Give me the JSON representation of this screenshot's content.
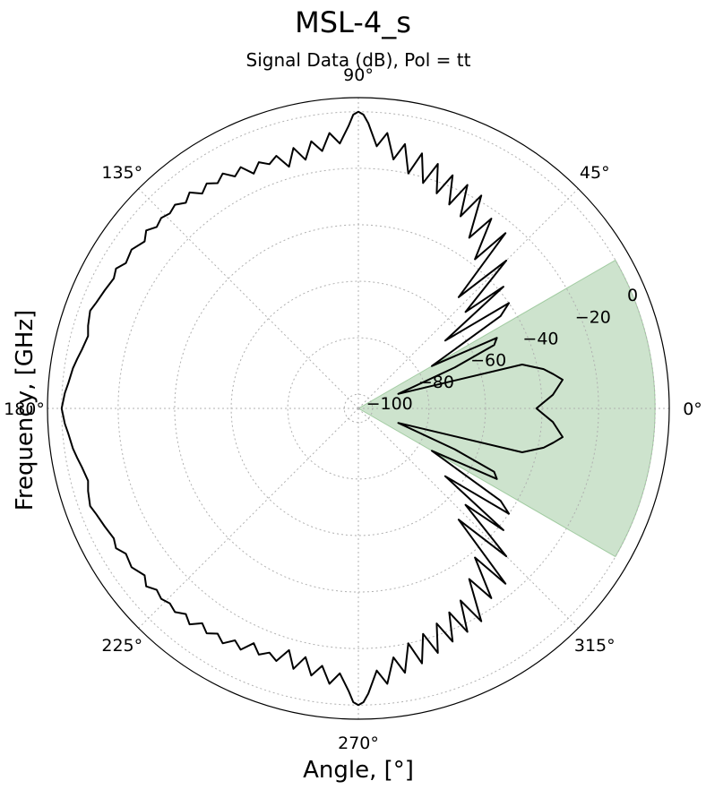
{
  "chart_data": {
    "type": "polar-line",
    "title": "MSL-4_s",
    "subtitle": "Signal Data (dB), Pol = tt",
    "xlabel": "Angle, [$^{\\circ}$]",
    "xlabel_display": "Angle, [°]",
    "ylabel": "Frequency, [GHz]",
    "theta_ticks": [
      "0°",
      "45°",
      "90°",
      "135°",
      "180°",
      "225°",
      "270°",
      "315°"
    ],
    "r_ticks": [
      "−100",
      "−80",
      "−60",
      "−40",
      "−20",
      "0"
    ],
    "r_tick_values": [
      -100,
      -80,
      -60,
      -40,
      -20,
      0
    ],
    "rlim": [
      -105,
      5
    ],
    "grid": true,
    "line_color": "#000000",
    "highlight": {
      "theta_range_deg": [
        -30,
        30
      ],
      "r_range": [
        -105,
        0
      ],
      "color": "#2e8b2e"
    },
    "series": [
      {
        "theta_deg": [
          0,
          4,
          8,
          10,
          12,
          15,
          20,
          23,
          25,
          27,
          30,
          33,
          35,
          38,
          40,
          42,
          45,
          48,
          50,
          52,
          55,
          57,
          60,
          62,
          64,
          66,
          68,
          70,
          72,
          74,
          76,
          78,
          80,
          82,
          84,
          86,
          88,
          89,
          90,
          91,
          92,
          94,
          96,
          98,
          100,
          102,
          104,
          106,
          108,
          110,
          112,
          114,
          116,
          118,
          120,
          122,
          124,
          126,
          128,
          130,
          132,
          134,
          136,
          138,
          140,
          142,
          145,
          148,
          150,
          152,
          155,
          158,
          160,
          163,
          165,
          168,
          170,
          172,
          175,
          177,
          180
        ],
        "r_db": [
          -42,
          -36,
          -32,
          -35,
          -38,
          -45,
          -90,
          -68,
          -52,
          -50,
          -75,
          -45,
          -40,
          -66,
          -38,
          -54,
          -31,
          -52,
          -24,
          -38,
          -23,
          -33,
          -18,
          -28,
          -17,
          -26,
          -16,
          -24,
          -14,
          -22,
          -12,
          -20,
          -10,
          -16,
          -7,
          -12,
          -4,
          -1,
          0,
          -1,
          -5,
          -11,
          -7,
          -13,
          -9,
          -15,
          -10,
          -16,
          -11,
          -13,
          -11,
          -14,
          -10,
          -12,
          -9,
          -11,
          -9,
          -11,
          -8,
          -10,
          -8,
          -9,
          -8,
          -9,
          -7,
          -9,
          -7,
          -8,
          -6,
          -7,
          -6,
          -5,
          -4,
          -5,
          -6,
          -5,
          -4,
          -3,
          -2,
          -1,
          0
        ]
      }
    ]
  }
}
